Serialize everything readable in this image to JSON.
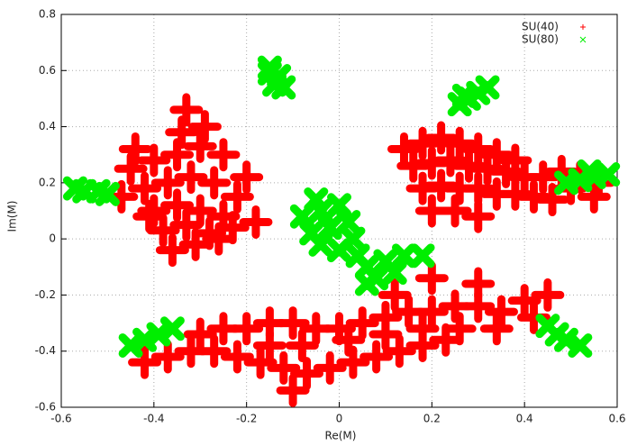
{
  "chart_data": {
    "type": "scatter",
    "xlabel": "Re(M)",
    "ylabel": "Im(M)",
    "xlim": [
      -0.6,
      0.6
    ],
    "ylim": [
      -0.6,
      0.8
    ],
    "xticks": [
      -0.6,
      -0.4,
      -0.2,
      0,
      0.2,
      0.4,
      0.6
    ],
    "yticks": [
      -0.6,
      -0.4,
      -0.2,
      0,
      0.2,
      0.4,
      0.6,
      0.8
    ],
    "grid": true,
    "legend": "upper right",
    "series": [
      {
        "name": "SU(40)",
        "color": "#ff0000",
        "marker": "plus",
        "x": [
          -0.45,
          -0.4,
          -0.35,
          -0.3,
          -0.25,
          -0.2,
          -0.42,
          -0.37,
          -0.32,
          -0.27,
          -0.22,
          -0.47,
          -0.4,
          -0.35,
          -0.3,
          -0.25,
          -0.38,
          -0.33,
          -0.28,
          -0.23,
          -0.36,
          -0.31,
          -0.26,
          -0.34,
          -0.29,
          -0.33,
          -0.18,
          -0.44,
          -0.41,
          0.14,
          0.18,
          0.22,
          0.26,
          0.3,
          0.34,
          0.38,
          0.16,
          0.2,
          0.24,
          0.28,
          0.32,
          0.36,
          0.4,
          0.44,
          0.48,
          0.52,
          0.56,
          0.18,
          0.22,
          0.26,
          0.3,
          0.34,
          0.38,
          0.42,
          0.46,
          0.2,
          0.25,
          0.3,
          0.5,
          0.55,
          -0.42,
          -0.37,
          -0.32,
          -0.27,
          -0.22,
          -0.17,
          -0.12,
          -0.07,
          -0.02,
          0.03,
          0.08,
          0.13,
          0.18,
          0.23,
          -0.3,
          -0.25,
          -0.2,
          -0.15,
          -0.1,
          -0.05,
          0.0,
          0.05,
          0.1,
          0.15,
          0.2,
          0.25,
          0.3,
          0.35,
          0.4,
          0.45,
          -0.15,
          -0.08,
          0.02,
          0.1,
          0.18,
          0.26,
          0.34,
          0.42,
          0.2,
          0.3,
          0.12,
          -0.1
        ],
        "values": [
          0.25,
          0.28,
          0.3,
          0.33,
          0.3,
          0.22,
          0.18,
          0.2,
          0.22,
          0.2,
          0.15,
          0.15,
          0.1,
          0.12,
          0.1,
          0.08,
          0.03,
          0.05,
          0.02,
          0.04,
          -0.04,
          -0.02,
          0.0,
          0.38,
          0.4,
          0.46,
          0.06,
          0.32,
          0.08,
          0.32,
          0.34,
          0.36,
          0.34,
          0.32,
          0.3,
          0.28,
          0.26,
          0.27,
          0.28,
          0.26,
          0.25,
          0.24,
          0.22,
          0.22,
          0.24,
          0.22,
          0.2,
          0.18,
          0.19,
          0.18,
          0.18,
          0.16,
          0.16,
          0.15,
          0.14,
          0.1,
          0.1,
          0.08,
          0.18,
          0.15,
          -0.44,
          -0.42,
          -0.4,
          -0.4,
          -0.42,
          -0.44,
          -0.46,
          -0.48,
          -0.46,
          -0.44,
          -0.42,
          -0.4,
          -0.38,
          -0.36,
          -0.34,
          -0.32,
          -0.32,
          -0.3,
          -0.3,
          -0.32,
          -0.32,
          -0.3,
          -0.28,
          -0.26,
          -0.26,
          -0.24,
          -0.24,
          -0.26,
          -0.22,
          -0.2,
          -0.38,
          -0.38,
          -0.36,
          -0.34,
          -0.32,
          -0.32,
          -0.32,
          -0.28,
          -0.14,
          -0.16,
          -0.2,
          -0.54
        ]
      },
      {
        "name": "SU(80)",
        "color": "#00ee00",
        "marker": "cross",
        "x": [
          -0.15,
          -0.13,
          -0.14,
          -0.12,
          -0.15,
          0.26,
          0.28,
          0.3,
          0.32,
          0.27,
          0.49,
          0.52,
          0.55,
          0.58,
          0.54,
          -0.57,
          -0.55,
          -0.52,
          -0.5,
          -0.45,
          -0.42,
          -0.39,
          -0.36,
          0.45,
          0.47,
          0.49,
          0.52,
          -0.08,
          -0.04,
          0.0,
          -0.06,
          -0.02,
          0.02,
          -0.04,
          0.0,
          0.04,
          0.06,
          0.1,
          0.14,
          0.18,
          0.08,
          0.12,
          0.06,
          -0.05,
          0.03
        ],
        "values": [
          0.59,
          0.58,
          0.55,
          0.54,
          0.61,
          0.48,
          0.5,
          0.52,
          0.54,
          0.51,
          0.2,
          0.21,
          0.22,
          0.23,
          0.24,
          0.18,
          0.17,
          0.17,
          0.16,
          -0.38,
          -0.36,
          -0.34,
          -0.32,
          -0.31,
          -0.34,
          -0.36,
          -0.38,
          0.08,
          0.1,
          0.12,
          0.02,
          0.04,
          0.06,
          -0.02,
          -0.04,
          -0.06,
          -0.1,
          -0.08,
          -0.06,
          -0.06,
          -0.14,
          -0.12,
          -0.16,
          0.14,
          0.0
        ]
      }
    ]
  }
}
